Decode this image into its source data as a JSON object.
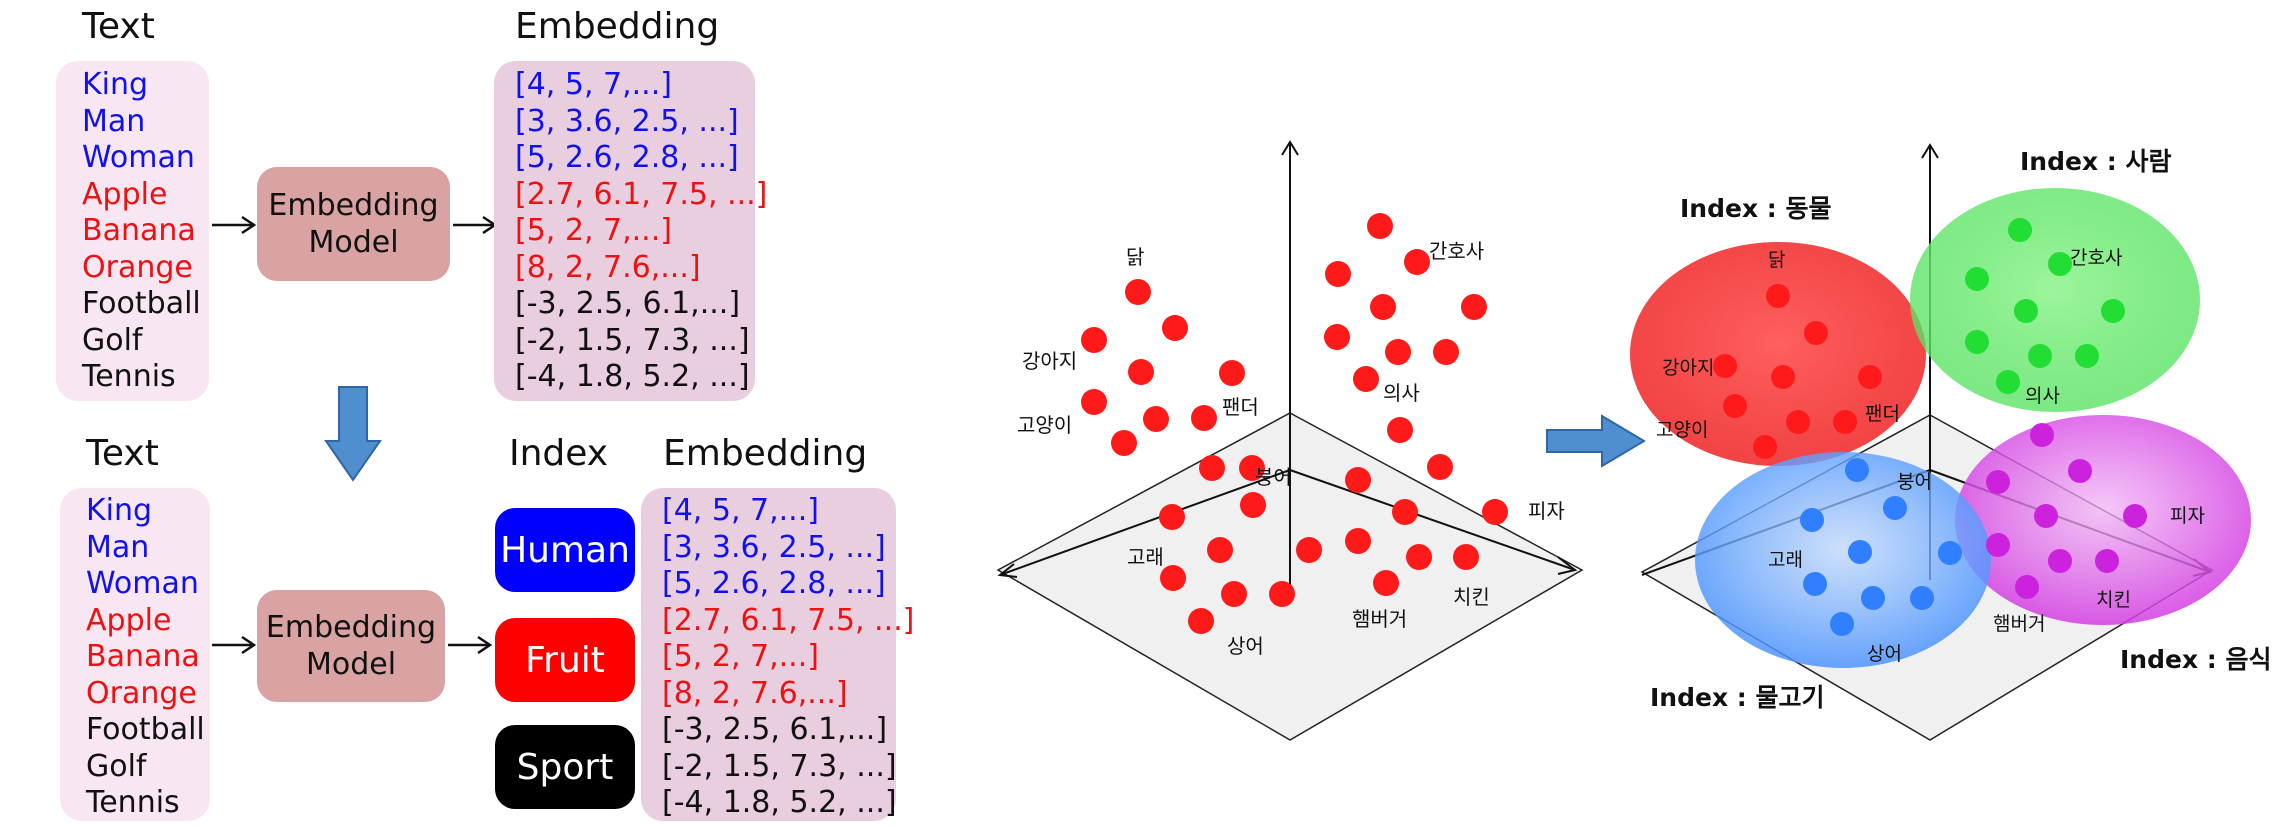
{
  "top": {
    "text_header": "Text",
    "embedding_header": "Embedding",
    "model_line1": "Embedding",
    "model_line2": "Model",
    "words": [
      {
        "text": "King",
        "color": "blue"
      },
      {
        "text": "Man",
        "color": "blue"
      },
      {
        "text": "Woman",
        "color": "blue"
      },
      {
        "text": "Apple",
        "color": "red"
      },
      {
        "text": "Banana",
        "color": "red"
      },
      {
        "text": "Orange",
        "color": "red"
      },
      {
        "text": "Football",
        "color": "black"
      },
      {
        "text": "Golf",
        "color": "black"
      },
      {
        "text": "Tennis",
        "color": "black"
      }
    ],
    "vectors": [
      {
        "text": "[4, 5, 7,...]",
        "color": "blue"
      },
      {
        "text": "[3, 3.6, 2.5, ...]",
        "color": "blue"
      },
      {
        "text": "[5, 2.6, 2.8, ...]",
        "color": "blue"
      },
      {
        "text": "[2.7, 6.1, 7.5, ...]",
        "color": "red"
      },
      {
        "text": "[5, 2, 7,...]",
        "color": "red"
      },
      {
        "text": "[8, 2, 7.6,...]",
        "color": "red"
      },
      {
        "text": "[-3, 2.5, 6.1,...]",
        "color": "black"
      },
      {
        "text": "[-2, 1.5, 7.3, ...]",
        "color": "black"
      },
      {
        "text": "[-4, 1.8, 5.2, ...]",
        "color": "black"
      }
    ]
  },
  "bottom": {
    "text_header": "Text",
    "index_header": "Index",
    "embedding_header": "Embedding",
    "model_line1": "Embedding",
    "model_line2": "Model",
    "words": [
      {
        "text": "King",
        "color": "blue"
      },
      {
        "text": "Man",
        "color": "blue"
      },
      {
        "text": "Woman",
        "color": "blue"
      },
      {
        "text": "Apple",
        "color": "red"
      },
      {
        "text": "Banana",
        "color": "red"
      },
      {
        "text": "Orange",
        "color": "red"
      },
      {
        "text": "Football",
        "color": "black"
      },
      {
        "text": "Golf",
        "color": "black"
      },
      {
        "text": "Tennis",
        "color": "black"
      }
    ],
    "index_labels": [
      {
        "text": "Human",
        "bg": "#0000ff"
      },
      {
        "text": "Fruit",
        "bg": "#ff0000"
      },
      {
        "text": "Sport",
        "bg": "#000000"
      }
    ],
    "vectors": [
      {
        "text": "[4, 5, 7,...]",
        "color": "blue"
      },
      {
        "text": "[3, 3.6, 2.5, ...]",
        "color": "blue"
      },
      {
        "text": "[5, 2.6, 2.8, ...]",
        "color": "blue"
      },
      {
        "text": "[2.7, 6.1, 7.5, ...]",
        "color": "red"
      },
      {
        "text": "[5, 2, 7,...]",
        "color": "red"
      },
      {
        "text": "[8, 2, 7.6,...]",
        "color": "red"
      },
      {
        "text": "[-3, 2.5, 6.1,...]",
        "color": "black"
      },
      {
        "text": "[-2, 1.5, 7.3, ...]",
        "color": "black"
      },
      {
        "text": "[-4, 1.8, 5.2, ...]",
        "color": "black"
      }
    ]
  },
  "space_labels": {
    "chicken": "닭",
    "nurse": "간호사",
    "puppy": "강아지",
    "doctor": "의사",
    "cat": "고양이",
    "panda": "팬더",
    "carp": "붕어",
    "pizza": "피자",
    "whale": "고래",
    "chicken_food": "치킨",
    "hamburger": "햄버거",
    "shark": "상어"
  },
  "index_titles": {
    "animal": "Index : 동물",
    "person": "Index : 사람",
    "fish": "Index : 물고기",
    "food": "Index : 음식"
  },
  "colors": {
    "human": "#0000ff",
    "fruit": "#ff0000",
    "sport": "#000000",
    "dot_red": "#ff1a1a",
    "cluster_red": "#ff2a2a",
    "cluster_green": "#22dd33",
    "cluster_blue": "#2f7fff",
    "cluster_purple": "#cc22dd",
    "arrow_blue": "#4f8fd0"
  }
}
